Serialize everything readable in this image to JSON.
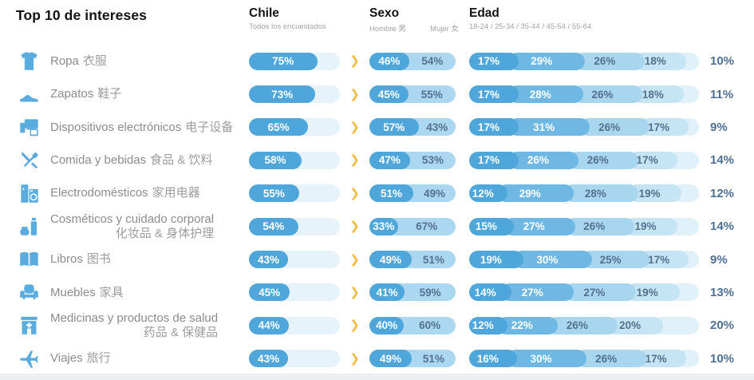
{
  "header": {
    "title": "Top 10 de intereses",
    "chile": {
      "label": "Chile",
      "sub": "Todos los encuestados"
    },
    "sexo": {
      "label": "Sexo",
      "male": "Hombre 男",
      "female": "Mujer 女"
    },
    "edad": {
      "label": "Edad",
      "sub": "18-24 / 25-34 / 35-44 / 45-54 / 55-64"
    },
    "chevron": "❯"
  },
  "colors": {
    "icon_blue": "#5AACDF",
    "bar_dark": "#4FA6DA",
    "bar_medium": "#6FB8E4",
    "bar_light": "#A8D6EE",
    "bar_lighter": "#C5E4F4",
    "bar_lightest": "#E0F1FA",
    "chile_track": "#E6F3FB",
    "female_bg": "#ABD8F0",
    "slate_text": "#54718C",
    "right_value_text": "#4E6F94",
    "chevron_yellow": "#F4BC45",
    "label_gray": "#8C8C8C",
    "zh_gray": "#9D9D9D",
    "bottom_strip": "#EDF0F2"
  },
  "chart_data": {
    "type": "table",
    "title": "Top 10 de intereses",
    "region": "Chile",
    "region_note": "Todos los encuestados",
    "sex_groups": [
      "Hombre",
      "Mujer"
    ],
    "age_groups": [
      "18-24",
      "25-34",
      "35-44",
      "45-54",
      "55-64"
    ],
    "unit": "%",
    "rows": [
      {
        "label": "Ropa",
        "zh": "衣服",
        "zh_block": false,
        "icon": "tshirt-icon",
        "chile": 75,
        "male": 46,
        "female": 54,
        "edad": [
          17,
          29,
          26,
          18,
          10
        ]
      },
      {
        "label": "Zapatos",
        "zh": "鞋子",
        "zh_block": false,
        "icon": "sneaker-icon",
        "chile": 73,
        "male": 45,
        "female": 55,
        "edad": [
          17,
          28,
          26,
          18,
          11
        ]
      },
      {
        "label": "Dispositivos electrónicos",
        "zh": "电子设备",
        "zh_block": false,
        "icon": "devices-icon",
        "chile": 65,
        "male": 57,
        "female": 43,
        "edad": [
          17,
          31,
          26,
          17,
          9
        ]
      },
      {
        "label": "Comida y bebidas",
        "zh": "食品 & 饮料",
        "zh_block": false,
        "icon": "cutlery-icon",
        "chile": 58,
        "male": 47,
        "female": 53,
        "edad": [
          17,
          26,
          26,
          17,
          14
        ]
      },
      {
        "label": "Electrodomésticos",
        "zh": "家用电器",
        "zh_block": false,
        "icon": "appliances-icon",
        "chile": 55,
        "male": 51,
        "female": 49,
        "edad": [
          12,
          29,
          28,
          19,
          12
        ]
      },
      {
        "label": "Cosméticos y cuidado corporal",
        "zh": "化妆品 & 身体护理",
        "zh_block": true,
        "icon": "cosmetics-icon",
        "chile": 54,
        "male": 33,
        "female": 67,
        "edad": [
          15,
          27,
          26,
          19,
          14
        ]
      },
      {
        "label": "Libros",
        "zh": "图书",
        "zh_block": false,
        "icon": "book-icon",
        "chile": 43,
        "male": 49,
        "female": 51,
        "edad": [
          19,
          30,
          25,
          17,
          9
        ]
      },
      {
        "label": "Muebles",
        "zh": "家具",
        "zh_block": false,
        "icon": "armchair-icon",
        "chile": 45,
        "male": 41,
        "female": 59,
        "edad": [
          14,
          27,
          27,
          19,
          13
        ]
      },
      {
        "label": "Medicinas y productos de salud",
        "zh": "药品 & 保健品",
        "zh_block": true,
        "icon": "pharmacy-icon",
        "chile": 44,
        "male": 40,
        "female": 60,
        "edad": [
          12,
          22,
          26,
          20,
          20
        ]
      },
      {
        "label": "Viajes",
        "zh": "旅行",
        "zh_block": false,
        "icon": "plane-icon",
        "chile": 43,
        "male": 49,
        "female": 51,
        "edad": [
          16,
          30,
          26,
          17,
          10
        ]
      }
    ]
  }
}
